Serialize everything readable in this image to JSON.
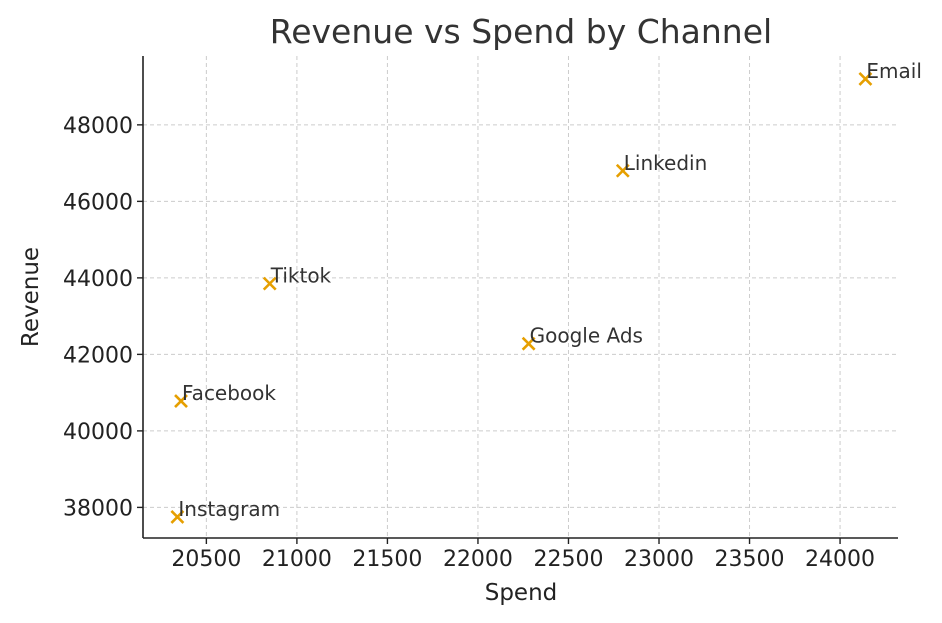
{
  "chart_data": {
    "type": "scatter",
    "title": "Revenue vs Spend by Channel",
    "xlabel": "Spend",
    "ylabel": "Revenue",
    "xlim": [
      20150,
      24320
    ],
    "ylim": [
      37200,
      49800
    ],
    "xticks": [
      20500,
      21000,
      21500,
      22000,
      22500,
      23000,
      23500,
      24000
    ],
    "yticks": [
      38000,
      40000,
      42000,
      44000,
      46000,
      48000
    ],
    "xtick_labels": [
      "20500",
      "21000",
      "21500",
      "22000",
      "22500",
      "23000",
      "23500",
      "24000"
    ],
    "ytick_labels": [
      "38000",
      "40000",
      "42000",
      "44000",
      "46000",
      "48000"
    ],
    "grid": true,
    "marker": "x",
    "marker_color": "#e69f00",
    "points": [
      {
        "label": "Email",
        "x": 24140,
        "y": 49200
      },
      {
        "label": "Linkedin",
        "x": 22800,
        "y": 46800
      },
      {
        "label": "Tiktok",
        "x": 20850,
        "y": 43850
      },
      {
        "label": "Google Ads",
        "x": 22280,
        "y": 42280
      },
      {
        "label": "Facebook",
        "x": 20360,
        "y": 40780
      },
      {
        "label": "Instagram",
        "x": 20340,
        "y": 37750
      }
    ]
  }
}
